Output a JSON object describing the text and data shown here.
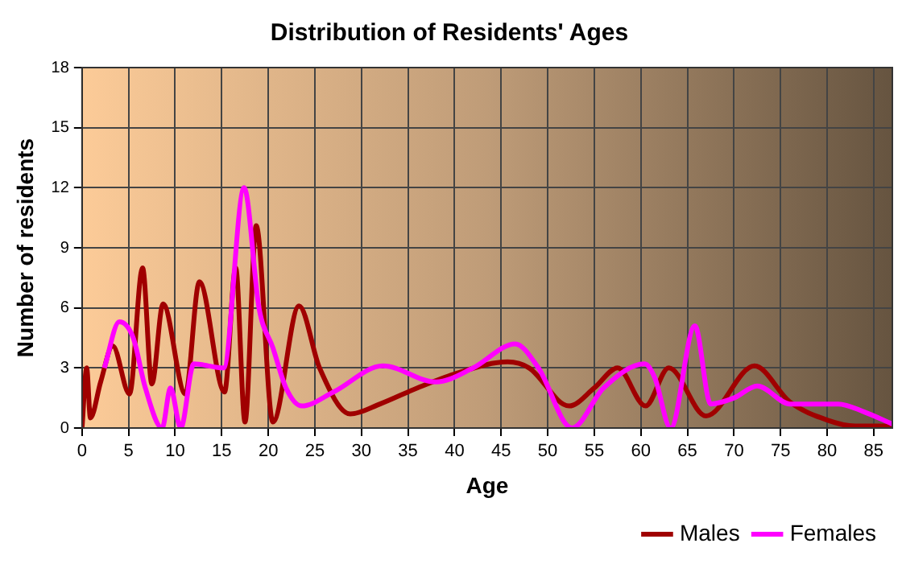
{
  "chart_data": {
    "type": "line",
    "title": "Distribution of Residents' Ages",
    "xlabel": "Age",
    "ylabel": "Number of residents",
    "xlim": [
      0,
      87
    ],
    "xticks": [
      0,
      5,
      10,
      15,
      20,
      25,
      30,
      35,
      40,
      45,
      50,
      55,
      60,
      65,
      70,
      75,
      80,
      85
    ],
    "ylim": [
      0,
      18
    ],
    "yticks": [
      0,
      3,
      6,
      9,
      12,
      15,
      18
    ],
    "grid": true,
    "legend": "bottom right",
    "marker": "none",
    "line_style": "solid",
    "series": [
      {
        "name": "Males",
        "color": "#a00000",
        "x": [
          0,
          0.5,
          0.9,
          2,
          3.3,
          5.1,
          6.5,
          7.5,
          8.7,
          11.1,
          12.6,
          15.3,
          16.5,
          17.5,
          18.7,
          20.5,
          23.3,
          25.5,
          28.8,
          32,
          36,
          40,
          45.7,
          48,
          52.3,
          55,
          57.5,
          60.5,
          63,
          67,
          72.2,
          76,
          80,
          83,
          87
        ],
        "values": [
          0,
          3,
          0.5,
          2.3,
          4.1,
          1.7,
          8,
          2.2,
          6.2,
          1.7,
          7.3,
          1.8,
          8,
          0.3,
          10.1,
          0.3,
          6.1,
          3,
          0.7,
          1.2,
          2,
          2.7,
          3.3,
          3,
          1.1,
          2,
          3,
          1.1,
          3,
          0.6,
          3.1,
          1.3,
          0.4,
          0.1,
          0.1
        ]
      },
      {
        "name": "Females",
        "color": "#ff00ff",
        "x": [
          2.4,
          4,
          5.5,
          6.8,
          8.6,
          9.5,
          10.6,
          12,
          15.2,
          17.4,
          19,
          20.5,
          21.9,
          23.6,
          27,
          32.3,
          38,
          42,
          46.5,
          49,
          52.6,
          56,
          60.4,
          61.5,
          63.2,
          65.8,
          67.5,
          70,
          72.5,
          76,
          81.2,
          84,
          87
        ],
        "values": [
          3,
          5.3,
          4.5,
          2,
          0,
          2,
          0,
          3.2,
          3,
          12,
          6,
          4,
          2,
          1.1,
          1.8,
          3.1,
          2.3,
          3,
          4.2,
          3,
          0,
          2,
          3.2,
          2.5,
          0,
          5.1,
          1.2,
          1.5,
          2.1,
          1.2,
          1.2,
          0.8,
          0.2
        ]
      }
    ]
  }
}
